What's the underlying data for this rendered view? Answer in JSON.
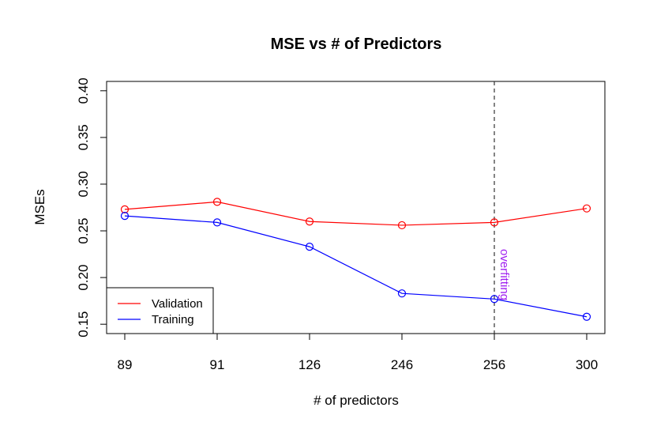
{
  "chart_data": {
    "type": "line",
    "title": "MSE vs # of Predictors",
    "xlabel": "# of predictors",
    "ylabel": "MSEs",
    "categories": [
      "89",
      "91",
      "126",
      "246",
      "256",
      "300"
    ],
    "ylim": [
      0.14,
      0.41
    ],
    "yticks": [
      "0.15",
      "0.20",
      "0.25",
      "0.30",
      "0.35",
      "0.40"
    ],
    "series": [
      {
        "name": "Validation",
        "color": "#ff0000",
        "values": [
          0.273,
          0.281,
          0.26,
          0.256,
          0.259,
          0.274
        ]
      },
      {
        "name": "Training",
        "color": "#0000ff",
        "values": [
          0.266,
          0.259,
          0.233,
          0.183,
          0.177,
          0.158
        ]
      }
    ],
    "annotation": {
      "text": "overfitting",
      "category": "256",
      "color": "#a020f0",
      "line_style": "dashed"
    },
    "legend_position": "bottom-left",
    "grid": false
  }
}
